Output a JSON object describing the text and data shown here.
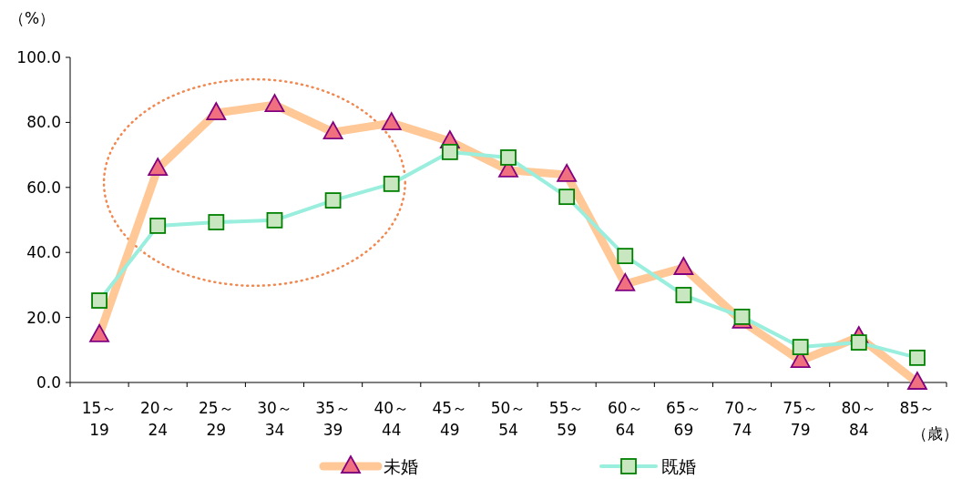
{
  "chart_data": {
    "type": "line",
    "ylabel": "（%）",
    "xlabel": "（歳）",
    "categories": [
      "15～19",
      "20～24",
      "25～29",
      "30～34",
      "35～39",
      "40～44",
      "45～49",
      "50～54",
      "55～59",
      "60～64",
      "65～69",
      "70～74",
      "75～79",
      "80～84",
      "85～"
    ],
    "ylim": [
      0,
      100
    ],
    "yticks": [
      {
        "value": 0,
        "label": "0.0"
      },
      {
        "value": 20,
        "label": "20.0"
      },
      {
        "value": 40,
        "label": "40.0"
      },
      {
        "value": 60,
        "label": "60.0"
      },
      {
        "value": 80,
        "label": "80.0"
      },
      {
        "value": 100,
        "label": "100.0"
      }
    ],
    "grid": false,
    "legend": "bottom",
    "series": [
      {
        "name": "未婚",
        "color": "#ffc896",
        "marker": "triangle",
        "values": [
          14.6,
          65.8,
          82.9,
          85.4,
          77.0,
          79.8,
          74.2,
          65.3,
          63.9,
          30.3,
          35.3,
          18.8,
          6.7,
          14.0,
          0
        ]
      },
      {
        "name": "既婚",
        "color": "#99eedd",
        "marker": "square",
        "values": [
          25.2,
          48.2,
          49.3,
          49.9,
          56.0,
          61.1,
          70.9,
          69.2,
          57.1,
          38.9,
          26.9,
          20.2,
          10.9,
          12.3,
          7.6
        ]
      }
    ]
  }
}
